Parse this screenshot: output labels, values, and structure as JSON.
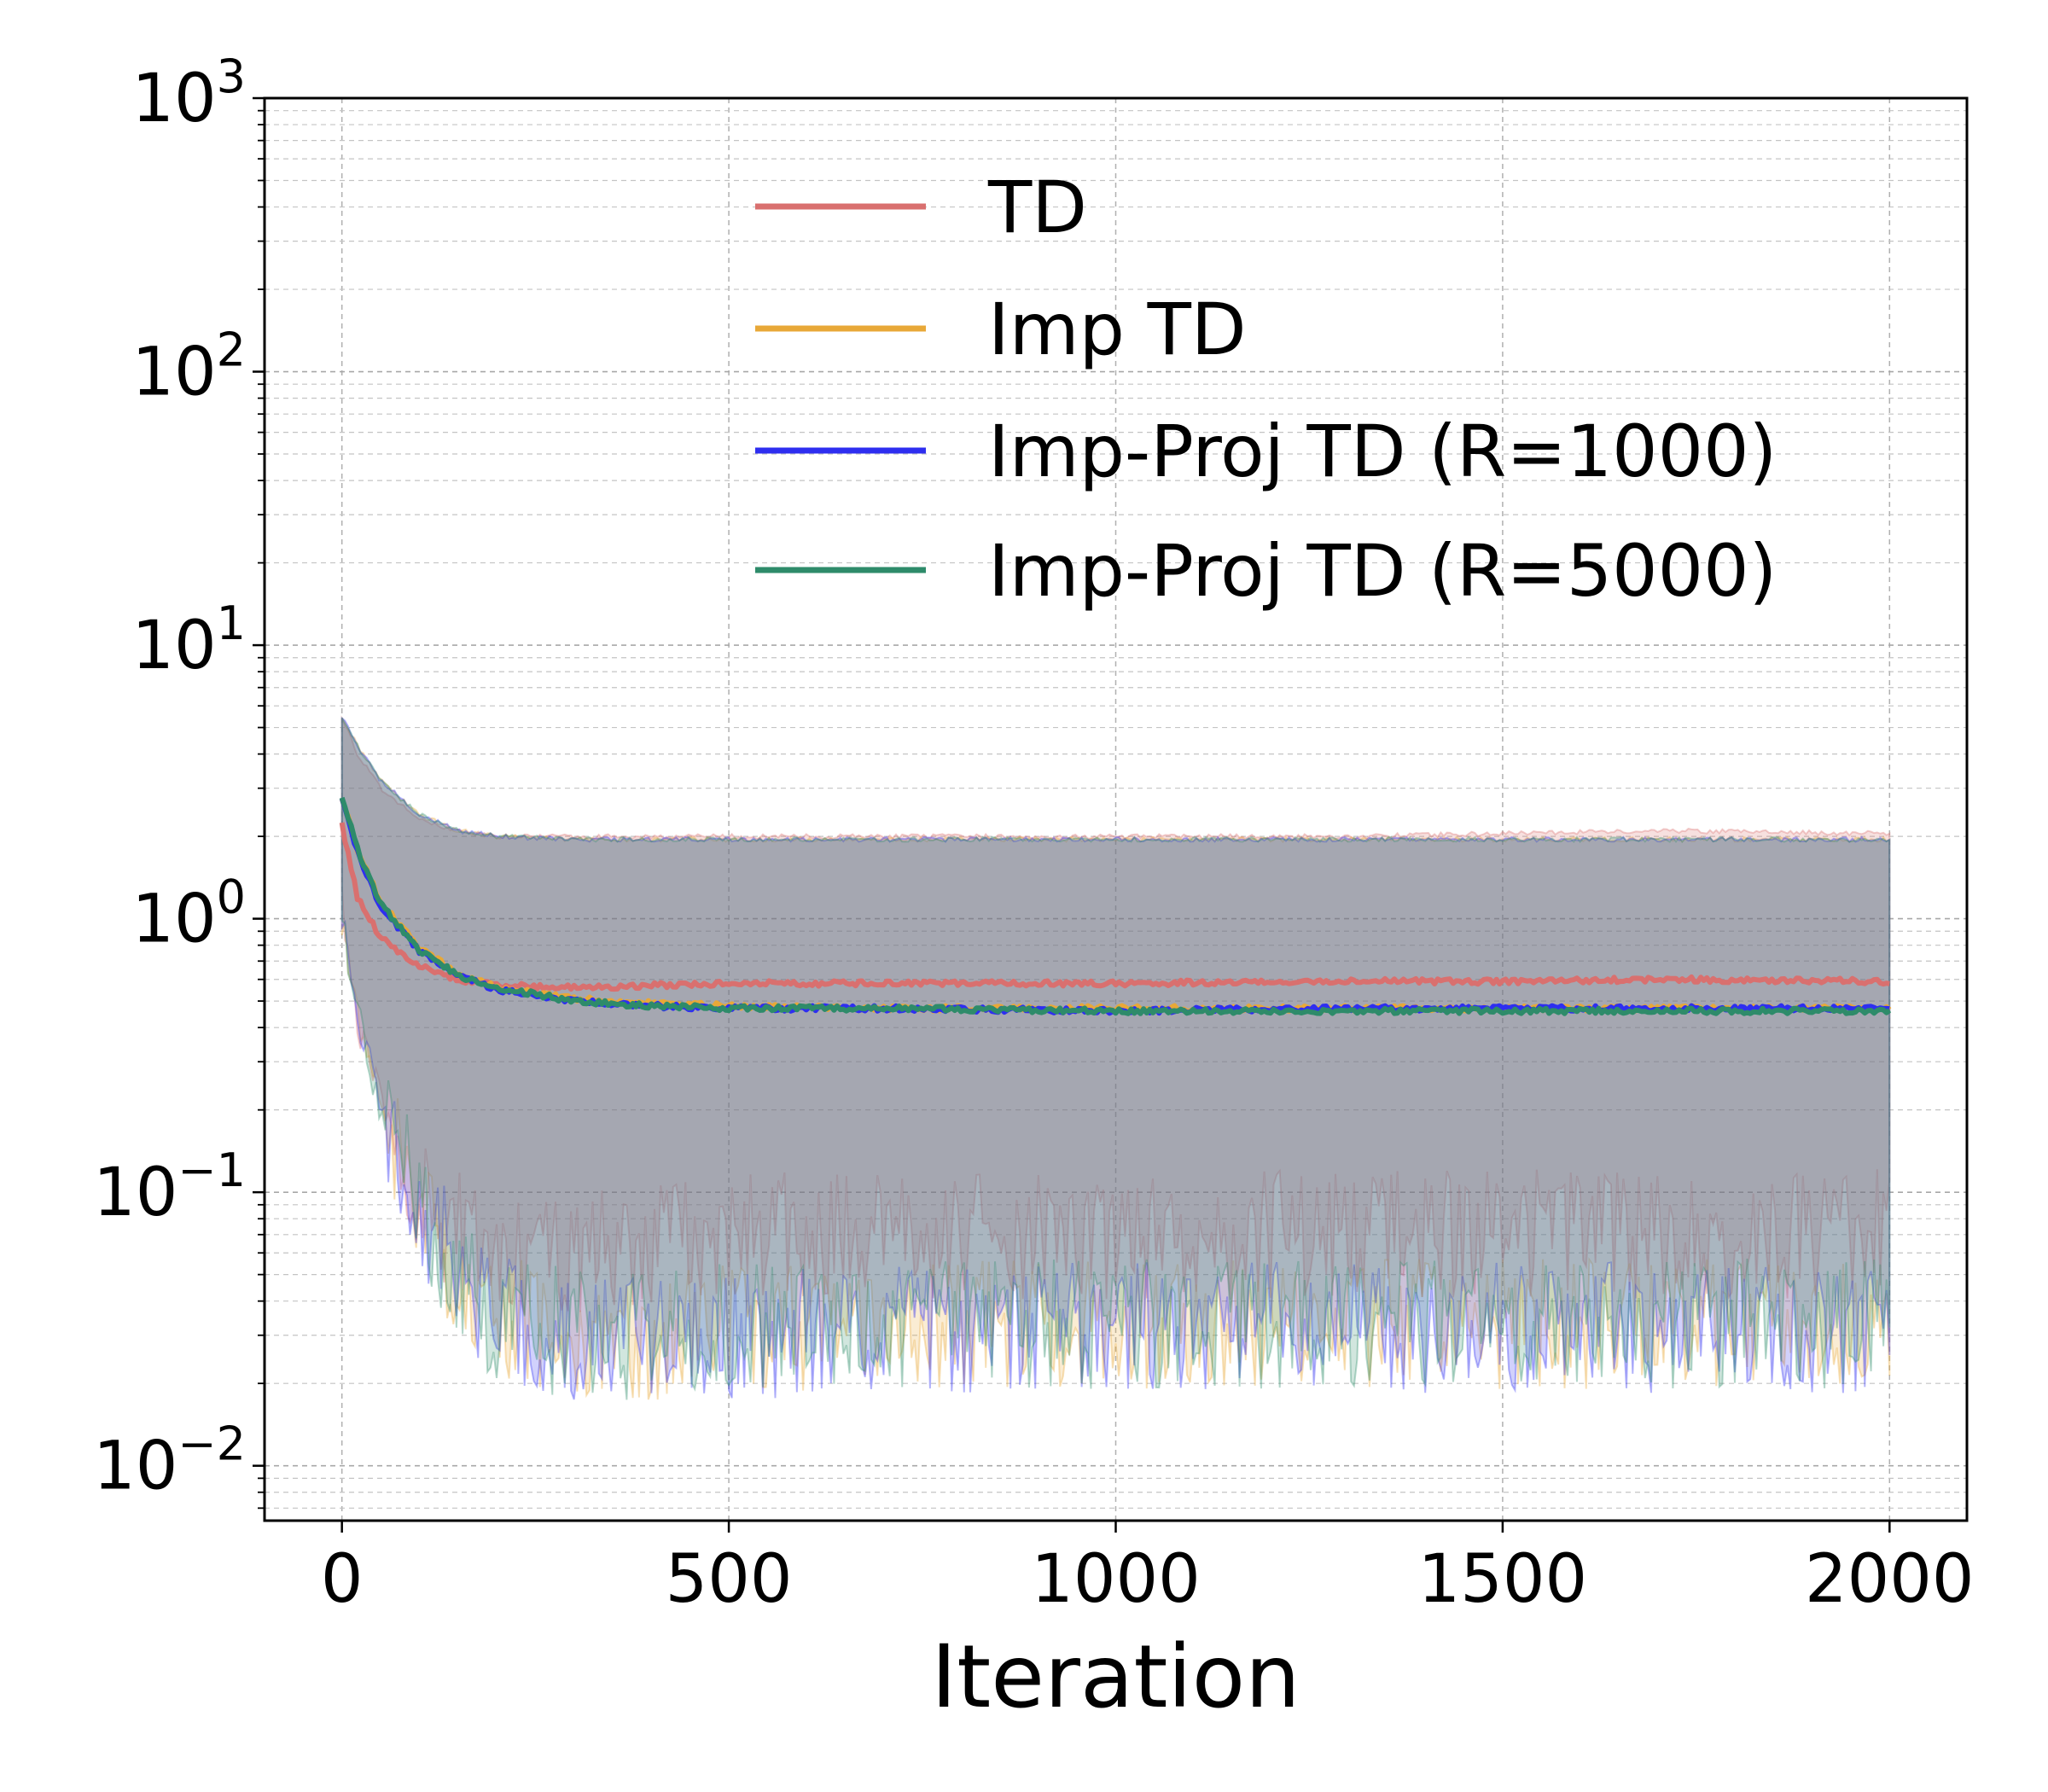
{
  "chart_data": {
    "type": "line",
    "title": "",
    "xlabel": "Iteration",
    "ylabel": "",
    "yscale": "log",
    "xlim": [
      -100,
      2100
    ],
    "ylim": [
      0.0063,
      1000
    ],
    "xticks": [
      0,
      500,
      1000,
      1500,
      2000
    ],
    "xtick_labels": [
      "0",
      "500",
      "1000",
      "1500",
      "2000"
    ],
    "yticks": [
      0.01,
      0.1,
      1,
      10,
      100,
      1000
    ],
    "ytick_labels": [
      {
        "base": "10",
        "exp": "−2"
      },
      {
        "base": "10",
        "exp": "−1"
      },
      {
        "base": "10",
        "exp": "0"
      },
      {
        "base": "10",
        "exp": "1"
      },
      {
        "base": "10",
        "exp": "2"
      },
      {
        "base": "10",
        "exp": "3"
      }
    ],
    "grid": true,
    "legend_position": "upper-center",
    "series": [
      {
        "name": "TD",
        "color": "#d9706f",
        "x": [
          0,
          20,
          50,
          100,
          150,
          200,
          300,
          400,
          500,
          700,
          1000,
          1300,
          1500,
          1700,
          2000
        ],
        "mean": [
          2.2,
          1.2,
          0.85,
          0.67,
          0.6,
          0.57,
          0.56,
          0.57,
          0.58,
          0.58,
          0.58,
          0.59,
          0.59,
          0.6,
          0.59
        ],
        "upper": [
          5.5,
          4.0,
          3.0,
          2.3,
          2.1,
          2.0,
          2.0,
          2.0,
          2.0,
          2.0,
          2.0,
          2.0,
          2.05,
          2.1,
          2.05
        ],
        "lower": [
          1.2,
          0.4,
          0.22,
          0.1,
          0.07,
          0.06,
          0.06,
          0.065,
          0.07,
          0.07,
          0.07,
          0.07,
          0.07,
          0.07,
          0.07
        ]
      },
      {
        "name": "Imp TD",
        "color": "#e8a838",
        "x": [
          0,
          20,
          50,
          100,
          150,
          200,
          300,
          400,
          500,
          700,
          1000,
          1300,
          1500,
          1700,
          2000
        ],
        "mean": [
          2.8,
          1.8,
          1.15,
          0.78,
          0.63,
          0.56,
          0.51,
          0.49,
          0.48,
          0.47,
          0.47,
          0.47,
          0.47,
          0.47,
          0.47
        ],
        "upper": [
          5.5,
          4.3,
          3.2,
          2.4,
          2.1,
          2.0,
          1.95,
          1.95,
          1.95,
          1.95,
          1.95,
          1.95,
          1.95,
          1.95,
          1.95
        ],
        "lower": [
          1.0,
          0.45,
          0.2,
          0.09,
          0.05,
          0.035,
          0.03,
          0.03,
          0.032,
          0.033,
          0.033,
          0.033,
          0.033,
          0.033,
          0.033
        ]
      },
      {
        "name": "Imp-Proj TD (R=1000)",
        "color": "#2e2ef0",
        "x": [
          0,
          20,
          50,
          100,
          150,
          200,
          300,
          400,
          500,
          700,
          1000,
          1300,
          1500,
          1700,
          2000
        ],
        "mean": [
          2.8,
          1.75,
          1.1,
          0.76,
          0.62,
          0.55,
          0.5,
          0.48,
          0.47,
          0.47,
          0.46,
          0.47,
          0.47,
          0.47,
          0.47
        ],
        "upper": [
          5.5,
          4.3,
          3.2,
          2.4,
          2.1,
          2.0,
          1.95,
          1.95,
          1.95,
          1.95,
          1.95,
          1.95,
          1.95,
          1.95,
          1.95
        ],
        "lower": [
          1.0,
          0.45,
          0.2,
          0.09,
          0.05,
          0.035,
          0.028,
          0.028,
          0.03,
          0.032,
          0.032,
          0.032,
          0.032,
          0.032,
          0.032
        ]
      },
      {
        "name": "Imp-Proj TD (R=5000)",
        "color": "#2e8b6a",
        "x": [
          0,
          20,
          50,
          100,
          150,
          200,
          300,
          400,
          500,
          700,
          1000,
          1300,
          1500,
          1700,
          2000
        ],
        "mean": [
          2.8,
          1.8,
          1.13,
          0.77,
          0.62,
          0.56,
          0.5,
          0.48,
          0.47,
          0.47,
          0.46,
          0.46,
          0.46,
          0.46,
          0.46
        ],
        "upper": [
          5.5,
          4.3,
          3.2,
          2.4,
          2.1,
          2.0,
          1.95,
          1.95,
          1.95,
          1.95,
          1.95,
          1.95,
          1.95,
          1.95,
          1.95
        ],
        "lower": [
          1.0,
          0.45,
          0.2,
          0.09,
          0.05,
          0.035,
          0.03,
          0.03,
          0.032,
          0.033,
          0.033,
          0.033,
          0.033,
          0.033,
          0.033
        ]
      }
    ]
  }
}
